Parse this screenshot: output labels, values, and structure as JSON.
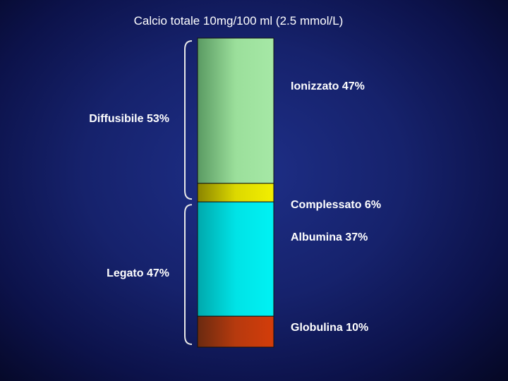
{
  "chart_data": {
    "type": "bar",
    "stacked": true,
    "title": "Calcio totale 10mg/100 ml (2.5 mmol/L)",
    "unit": "%",
    "ylim": [
      0,
      100
    ],
    "segments": [
      {
        "label": "Ionizzato 47%",
        "value": 47,
        "color": "#9bdf9b"
      },
      {
        "label": "Complessato 6%",
        "value": 6,
        "color": "#e7e300"
      },
      {
        "label": "Albumina 37%",
        "value": 37,
        "color": "#00e5e8"
      },
      {
        "label": "Globulina 10%",
        "value": 10,
        "color": "#c8390c"
      }
    ],
    "groups": [
      {
        "label": "Diffusibile 53%",
        "value": 53,
        "from": 0,
        "to": 53
      },
      {
        "label": "Legato 47%",
        "value": 47,
        "from": 53,
        "to": 100
      }
    ]
  }
}
